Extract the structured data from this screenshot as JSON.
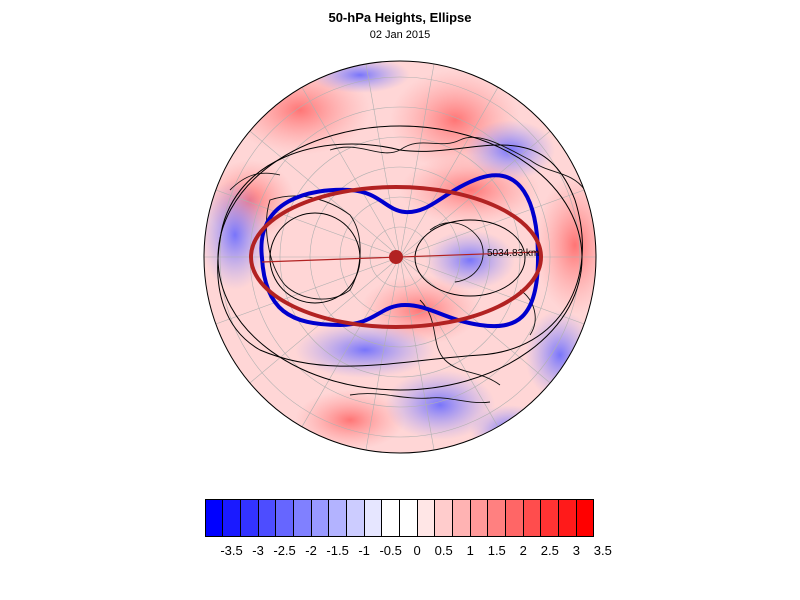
{
  "title": "50-hPa Heights, Ellipse",
  "date": "02 Jan 2015",
  "ellipse": {
    "distance_label": "5034.83 km",
    "ellipse_color": "#b22222",
    "contour_color": "#0000cd",
    "center_color": "#b22222"
  },
  "colorbar": {
    "colors": [
      "#0000ff",
      "#1a1aff",
      "#3333ff",
      "#4d4dff",
      "#6666ff",
      "#8080ff",
      "#9999ff",
      "#b3b3ff",
      "#ccccff",
      "#e6e6ff",
      "#ffffff",
      "#ffffff",
      "#ffe6e6",
      "#ffcccc",
      "#ffb3b3",
      "#ff9999",
      "#ff8080",
      "#ff6666",
      "#ff4d4d",
      "#ff3333",
      "#ff1a1a",
      "#ff0000"
    ],
    "labels": [
      "-3.5",
      "-3",
      "-2.5",
      "-2",
      "-1.5",
      "-1",
      "-0.5",
      "0",
      "0.5",
      "1",
      "1.5",
      "2",
      "2.5",
      "3",
      "3.5"
    ]
  }
}
